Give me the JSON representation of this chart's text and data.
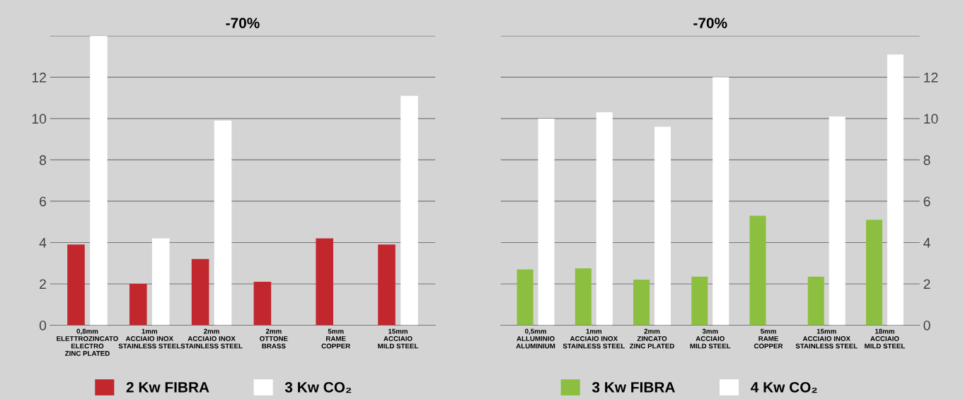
{
  "chart_data": [
    {
      "type": "bar",
      "title": "-70%",
      "categories": [
        "0,8mm\nELETTROZINCATO\nELECTRO\nZINC PLATED",
        "1mm\nACCIAIO INOX\nSTAINLESS STEEL",
        "2mm\nACCIAIO INOX\nSTAINLESS STEEL",
        "2mm\nOTTONE\nBRASS",
        "5mm\nRAME\nCOPPER",
        "15mm\nACCIAIO\nMILD STEEL"
      ],
      "series": [
        {
          "name": "2 Kw FIBRA",
          "color": "#c1272d",
          "values": [
            3.9,
            2.0,
            3.2,
            2.1,
            4.2,
            3.9
          ]
        },
        {
          "name": "3 Kw CO₂",
          "color": "#ffffff",
          "values": [
            14.0,
            4.2,
            9.9,
            null,
            null,
            11.1
          ]
        }
      ],
      "ylim": [
        0,
        14
      ],
      "yticks": [
        0,
        2,
        4,
        6,
        8,
        10,
        12,
        {
          "value": 14,
          "label": null
        }
      ],
      "grid": "y",
      "legend": "bottom"
    },
    {
      "type": "bar",
      "title": "-70%",
      "categories": [
        "0,5mm\nALLUMINIO\nALUMINIUM",
        "1mm\nACCIAIO INOX\nSTAINLESS STEEL",
        "2mm\nZINCATO\nZINC PLATED",
        "3mm\nACCIAIO\nMILD STEEL",
        "5mm\nRAME\nCOPPER",
        "15mm\nACCIAIO INOX\nSTAINLESS STEEL",
        "18mm\nACCIAIO\nMILD STEEL"
      ],
      "series": [
        {
          "name": "3 Kw FIBRA",
          "color": "#8cbf3f",
          "values": [
            2.7,
            2.75,
            2.2,
            2.35,
            5.3,
            2.35,
            5.1
          ]
        },
        {
          "name": "4 Kw CO₂",
          "color": "#ffffff",
          "values": [
            10.0,
            10.3,
            9.6,
            12.0,
            null,
            10.1,
            13.1
          ]
        }
      ],
      "ylim": [
        0,
        14
      ],
      "yticks": [
        0,
        2,
        4,
        6,
        8,
        10,
        12,
        {
          "value": 14,
          "label": null
        }
      ],
      "grid": "y",
      "legend": "bottom"
    }
  ]
}
